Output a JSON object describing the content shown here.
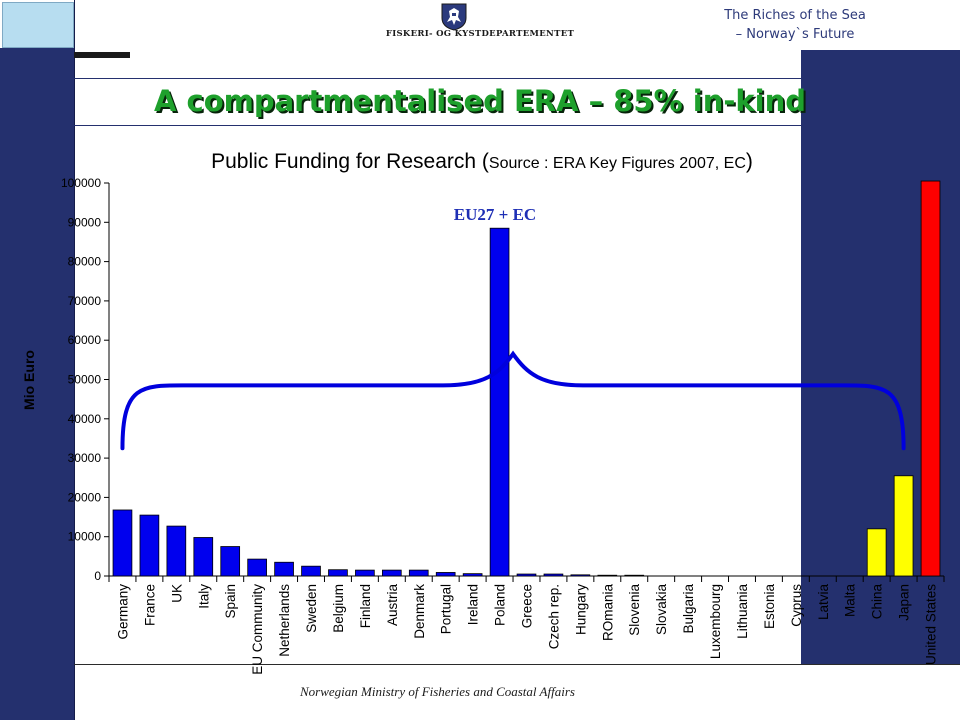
{
  "header": {
    "ministry_name": "FISKERI- OG KYSTDEPARTEMENTET",
    "tagline_line1": "The Riches of the Sea",
    "tagline_line2": "– Norway`s Future",
    "emblem_icon": "norwegian-lion-coat-of-arms"
  },
  "main_title": "A compartmentalised ERA – 85% in-kind",
  "footer": "Norwegian Ministry of Fisheries and Coastal Affairs",
  "colors": {
    "band": "#24306e",
    "title_green": "#1ea02c",
    "eu_bar": "#0000ee",
    "asia_bar": "#ffff00",
    "us_bar": "#ff0000",
    "bracket": "#0000dd"
  },
  "chart_data": {
    "type": "bar",
    "title": "Public Funding for Research (Source : ERA Key Figures 2007, EC)",
    "title_main": "Public Funding for Research",
    "title_source": "Source : ERA Key Figures 2007, EC",
    "xlabel": "",
    "ylabel": "Mio Euro",
    "ylim": [
      0,
      100000
    ],
    "yticks": [
      "0",
      "10000",
      "20000",
      "30000",
      "40000",
      "50000",
      "60000",
      "70000",
      "80000",
      "90000",
      "100000"
    ],
    "grid": false,
    "annotation": "EU27 + EC",
    "bracket_range": [
      "Germany",
      "Japan"
    ],
    "categories": [
      "Germany",
      "France",
      "UK",
      "Italy",
      "Spain",
      "EU Community",
      "Netherlands",
      "Sweden",
      "Belgium",
      "Finland",
      "Austria",
      "Denmark",
      "Portugal",
      "Ireland",
      "Poland",
      "Greece",
      "Czech rep.",
      "Hungary",
      "ROmania",
      "Slovenia",
      "Slovakia",
      "Bulgaria",
      "Luxembourg",
      "Lithuania",
      "Estonia",
      "Cyprus",
      "Latvia",
      "Malta",
      "China",
      "Japan",
      "United States"
    ],
    "values": [
      16800,
      15500,
      12700,
      9800,
      7500,
      4300,
      3500,
      2500,
      1600,
      1500,
      1500,
      1500,
      900,
      600,
      88500,
      500,
      500,
      300,
      200,
      200,
      0,
      0,
      0,
      0,
      0,
      0,
      0,
      0,
      12000,
      25500,
      100500
    ],
    "bar_groups": [
      "eu",
      "eu",
      "eu",
      "eu",
      "eu",
      "eu",
      "eu",
      "eu",
      "eu",
      "eu",
      "eu",
      "eu",
      "eu",
      "eu",
      "eu",
      "eu",
      "eu",
      "eu",
      "eu",
      "eu",
      "eu",
      "eu",
      "eu",
      "eu",
      "eu",
      "eu",
      "eu",
      "eu",
      "asia",
      "asia",
      "us"
    ]
  }
}
